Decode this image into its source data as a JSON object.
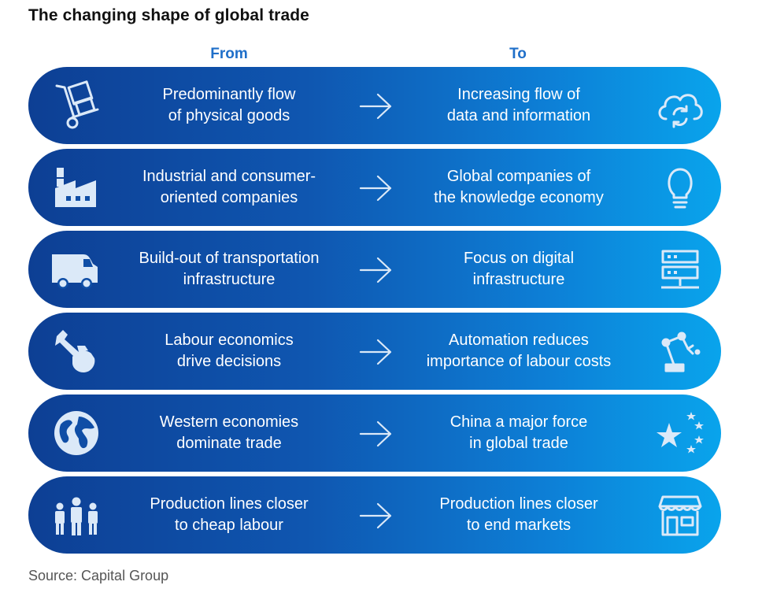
{
  "title": "The changing shape of global trade",
  "headers": {
    "from": "From",
    "to": "To"
  },
  "rows": [
    {
      "from": "Predominantly flow\nof physical goods",
      "to": "Increasing flow of\ndata and information",
      "from_icon": "hand-truck-icon",
      "to_icon": "cloud-sync-icon"
    },
    {
      "from": "Industrial and consumer-\noriented companies",
      "to": "Global companies of\nthe knowledge economy",
      "from_icon": "factory-icon",
      "to_icon": "lightbulb-icon"
    },
    {
      "from": "Build-out of transportation\ninfrastructure",
      "to": "Focus on digital\ninfrastructure",
      "from_icon": "delivery-van-icon",
      "to_icon": "server-rack-icon"
    },
    {
      "from": "Labour economics\ndrive decisions",
      "to": "Automation reduces\nimportance of labour costs",
      "from_icon": "hand-wrench-icon",
      "to_icon": "robot-arm-icon"
    },
    {
      "from": "Western economies\ndominate trade",
      "to": "China a major force\nin global trade",
      "from_icon": "globe-icon",
      "to_icon": "stars-icon"
    },
    {
      "from": "Production lines closer\nto cheap labour",
      "to": "Production lines closer\nto end markets",
      "from_icon": "workers-icon",
      "to_icon": "storefront-icon"
    }
  ],
  "source": "Source: Capital Group",
  "colors": {
    "gradient_start": "#0d3f94",
    "gradient_end": "#09a4ec",
    "header_blue": "#1f6fc9",
    "icon": "#dbe9f8"
  }
}
